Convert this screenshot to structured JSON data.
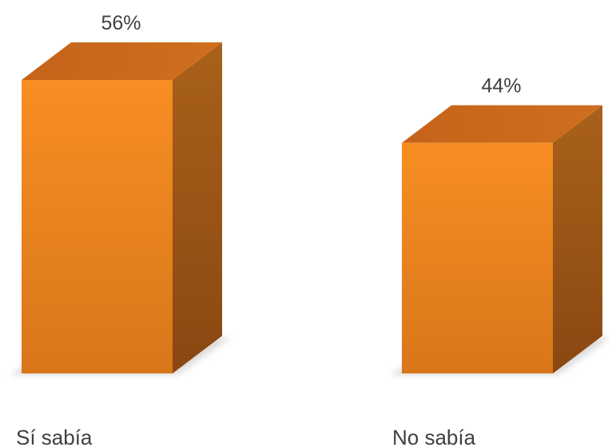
{
  "chart_data": {
    "type": "bar",
    "categories": [
      "Sí sabía",
      "No sabía"
    ],
    "values": [
      56,
      44
    ],
    "data_labels": [
      "56%",
      "44%"
    ],
    "unit": "%",
    "ylim": [
      0,
      56
    ],
    "grid": false,
    "legend": "none",
    "style": "3d-box",
    "colors": {
      "front": "#F58B20",
      "top": "#C7661B",
      "side": "#A3560F",
      "label": "#404040"
    }
  }
}
